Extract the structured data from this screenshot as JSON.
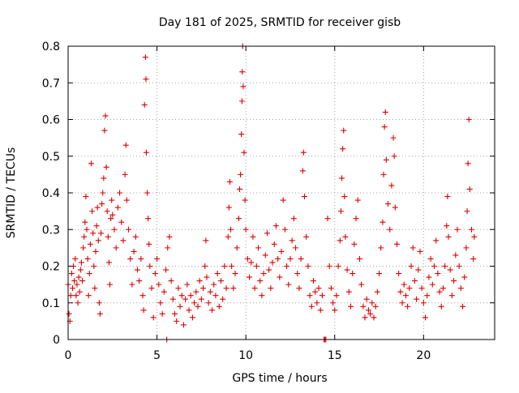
{
  "chart_data": {
    "type": "scatter",
    "title": "Day 181 of 2025, SRMTID for receiver gisb",
    "xlabel": "GPS time / hours",
    "ylabel": "SRMTID / TECUs",
    "xlim": [
      0,
      24
    ],
    "ylim": [
      0,
      0.8
    ],
    "xticks": [
      0,
      5,
      10,
      15,
      20
    ],
    "xtick_labels": [
      "0",
      "5",
      "10",
      "15",
      "20"
    ],
    "yticks": [
      0,
      0.1,
      0.2,
      0.3,
      0.4,
      0.5,
      0.6,
      0.7,
      0.8
    ],
    "ytick_labels": [
      "0",
      "0.1",
      "0.2",
      "0.3",
      "0.4",
      "0.5",
      "0.6",
      "0.7",
      "0.8"
    ],
    "grid": true,
    "marker": "plus",
    "color": "#e00000",
    "series": [
      {
        "name": "SRMTID",
        "points": [
          [
            0.0,
            0.15
          ],
          [
            0.05,
            0.07
          ],
          [
            0.1,
            0.05
          ],
          [
            0.15,
            0.12
          ],
          [
            0.2,
            0.18
          ],
          [
            0.25,
            0.14
          ],
          [
            0.3,
            0.2
          ],
          [
            0.35,
            0.16
          ],
          [
            0.4,
            0.22
          ],
          [
            0.45,
            0.12
          ],
          [
            0.5,
            0.15
          ],
          [
            0.55,
            0.1
          ],
          [
            0.6,
            0.17
          ],
          [
            0.65,
            0.13
          ],
          [
            0.7,
            0.19
          ],
          [
            0.75,
            0.21
          ],
          [
            0.8,
            0.16
          ],
          [
            0.85,
            0.25
          ],
          [
            0.9,
            0.28
          ],
          [
            0.95,
            0.32
          ],
          [
            1.0,
            0.39
          ],
          [
            1.05,
            0.3
          ],
          [
            1.1,
            0.22
          ],
          [
            1.15,
            0.12
          ],
          [
            1.2,
            0.18
          ],
          [
            1.25,
            0.26
          ],
          [
            1.3,
            0.48
          ],
          [
            1.35,
            0.35
          ],
          [
            1.4,
            0.29
          ],
          [
            1.45,
            0.2
          ],
          [
            1.5,
            0.14
          ],
          [
            1.55,
            0.24
          ],
          [
            1.6,
            0.31
          ],
          [
            1.65,
            0.36
          ],
          [
            1.7,
            0.27
          ],
          [
            1.75,
            0.1
          ],
          [
            1.8,
            0.07
          ],
          [
            1.85,
            0.29
          ],
          [
            1.9,
            0.37
          ],
          [
            1.95,
            0.4
          ],
          [
            2.0,
            0.44
          ],
          [
            2.05,
            0.57
          ],
          [
            2.1,
            0.61
          ],
          [
            2.15,
            0.47
          ],
          [
            2.2,
            0.35
          ],
          [
            2.25,
            0.28
          ],
          [
            2.3,
            0.21
          ],
          [
            2.35,
            0.15
          ],
          [
            2.4,
            0.33
          ],
          [
            2.45,
            0.38
          ],
          [
            2.5,
            0.34
          ],
          [
            2.6,
            0.3
          ],
          [
            2.7,
            0.25
          ],
          [
            2.8,
            0.36
          ],
          [
            2.9,
            0.4
          ],
          [
            3.0,
            0.32
          ],
          [
            3.1,
            0.27
          ],
          [
            3.2,
            0.45
          ],
          [
            3.25,
            0.53
          ],
          [
            3.3,
            0.38
          ],
          [
            3.4,
            0.3
          ],
          [
            3.5,
            0.22
          ],
          [
            3.6,
            0.15
          ],
          [
            3.7,
            0.24
          ],
          [
            3.8,
            0.28
          ],
          [
            3.9,
            0.19
          ],
          [
            4.0,
            0.16
          ],
          [
            4.1,
            0.22
          ],
          [
            4.2,
            0.12
          ],
          [
            4.25,
            0.08
          ],
          [
            4.3,
            0.64
          ],
          [
            4.35,
            0.77
          ],
          [
            4.38,
            0.71
          ],
          [
            4.4,
            0.51
          ],
          [
            4.45,
            0.4
          ],
          [
            4.5,
            0.33
          ],
          [
            4.55,
            0.26
          ],
          [
            4.6,
            0.2
          ],
          [
            4.7,
            0.14
          ],
          [
            4.8,
            0.06
          ],
          [
            4.9,
            0.18
          ],
          [
            5.0,
            0.22
          ],
          [
            5.1,
            0.15
          ],
          [
            5.2,
            0.1
          ],
          [
            5.3,
            0.07
          ],
          [
            5.4,
            0.13
          ],
          [
            5.5,
            0.19
          ],
          [
            5.55,
            0.0
          ],
          [
            5.6,
            0.25
          ],
          [
            5.7,
            0.28
          ],
          [
            5.8,
            0.16
          ],
          [
            5.9,
            0.11
          ],
          [
            6.0,
            0.07
          ],
          [
            6.1,
            0.05
          ],
          [
            6.2,
            0.14
          ],
          [
            6.3,
            0.09
          ],
          [
            6.4,
            0.12
          ],
          [
            6.5,
            0.04
          ],
          [
            6.6,
            0.11
          ],
          [
            6.7,
            0.15
          ],
          [
            6.8,
            0.08
          ],
          [
            6.9,
            0.12
          ],
          [
            7.0,
            0.06
          ],
          [
            7.1,
            0.1
          ],
          [
            7.2,
            0.13
          ],
          [
            7.3,
            0.09
          ],
          [
            7.4,
            0.16
          ],
          [
            7.5,
            0.11
          ],
          [
            7.6,
            0.14
          ],
          [
            7.7,
            0.2
          ],
          [
            7.75,
            0.27
          ],
          [
            7.8,
            0.17
          ],
          [
            7.9,
            0.1
          ],
          [
            8.0,
            0.13
          ],
          [
            8.1,
            0.08
          ],
          [
            8.2,
            0.15
          ],
          [
            8.3,
            0.12
          ],
          [
            8.4,
            0.18
          ],
          [
            8.5,
            0.09
          ],
          [
            8.6,
            0.16
          ],
          [
            8.7,
            0.11
          ],
          [
            8.8,
            0.2
          ],
          [
            8.9,
            0.14
          ],
          [
            9.0,
            0.28
          ],
          [
            9.05,
            0.36
          ],
          [
            9.1,
            0.43
          ],
          [
            9.15,
            0.3
          ],
          [
            9.2,
            0.2
          ],
          [
            9.3,
            0.14
          ],
          [
            9.4,
            0.18
          ],
          [
            9.5,
            0.25
          ],
          [
            9.6,
            0.33
          ],
          [
            9.65,
            0.41
          ],
          [
            9.7,
            0.45
          ],
          [
            9.75,
            0.56
          ],
          [
            9.78,
            0.65
          ],
          [
            9.8,
            0.73
          ],
          [
            9.82,
            0.8
          ],
          [
            9.85,
            0.69
          ],
          [
            9.9,
            0.51
          ],
          [
            9.95,
            0.38
          ],
          [
            10.0,
            0.3
          ],
          [
            10.1,
            0.22
          ],
          [
            10.2,
            0.17
          ],
          [
            10.3,
            0.21
          ],
          [
            10.4,
            0.28
          ],
          [
            10.5,
            0.14
          ],
          [
            10.6,
            0.2
          ],
          [
            10.7,
            0.25
          ],
          [
            10.8,
            0.16
          ],
          [
            10.9,
            0.12
          ],
          [
            11.0,
            0.18
          ],
          [
            11.1,
            0.23
          ],
          [
            11.2,
            0.29
          ],
          [
            11.3,
            0.19
          ],
          [
            11.4,
            0.14
          ],
          [
            11.5,
            0.21
          ],
          [
            11.6,
            0.26
          ],
          [
            11.7,
            0.31
          ],
          [
            11.8,
            0.22
          ],
          [
            11.9,
            0.17
          ],
          [
            12.0,
            0.24
          ],
          [
            12.1,
            0.38
          ],
          [
            12.2,
            0.3
          ],
          [
            12.3,
            0.2
          ],
          [
            12.4,
            0.15
          ],
          [
            12.5,
            0.22
          ],
          [
            12.6,
            0.27
          ],
          [
            12.7,
            0.33
          ],
          [
            12.8,
            0.25
          ],
          [
            12.9,
            0.18
          ],
          [
            13.0,
            0.14
          ],
          [
            13.1,
            0.22
          ],
          [
            13.2,
            0.46
          ],
          [
            13.25,
            0.51
          ],
          [
            13.3,
            0.39
          ],
          [
            13.4,
            0.28
          ],
          [
            13.5,
            0.2
          ],
          [
            13.6,
            0.12
          ],
          [
            13.7,
            0.09
          ],
          [
            13.8,
            0.16
          ],
          [
            13.9,
            0.13
          ],
          [
            14.0,
            0.1
          ],
          [
            14.1,
            0.14
          ],
          [
            14.2,
            0.08
          ],
          [
            14.3,
            0.12
          ],
          [
            14.4,
            0.0
          ],
          [
            14.45,
            0.0
          ],
          [
            14.5,
            0.0
          ],
          [
            14.6,
            0.33
          ],
          [
            14.7,
            0.2
          ],
          [
            14.8,
            0.14
          ],
          [
            14.9,
            0.1
          ],
          [
            15.0,
            0.08
          ],
          [
            15.1,
            0.12
          ],
          [
            15.2,
            0.2
          ],
          [
            15.3,
            0.27
          ],
          [
            15.35,
            0.35
          ],
          [
            15.4,
            0.44
          ],
          [
            15.45,
            0.52
          ],
          [
            15.5,
            0.57
          ],
          [
            15.55,
            0.39
          ],
          [
            15.6,
            0.28
          ],
          [
            15.7,
            0.19
          ],
          [
            15.8,
            0.13
          ],
          [
            15.9,
            0.09
          ],
          [
            16.0,
            0.18
          ],
          [
            16.1,
            0.26
          ],
          [
            16.2,
            0.33
          ],
          [
            16.3,
            0.38
          ],
          [
            16.4,
            0.22
          ],
          [
            16.5,
            0.15
          ],
          [
            16.6,
            0.09
          ],
          [
            16.7,
            0.06
          ],
          [
            16.8,
            0.11
          ],
          [
            16.9,
            0.08
          ],
          [
            17.0,
            0.07
          ],
          [
            17.1,
            0.1
          ],
          [
            17.2,
            0.06
          ],
          [
            17.3,
            0.09
          ],
          [
            17.4,
            0.13
          ],
          [
            17.5,
            0.18
          ],
          [
            17.6,
            0.25
          ],
          [
            17.7,
            0.32
          ],
          [
            17.75,
            0.45
          ],
          [
            17.8,
            0.58
          ],
          [
            17.85,
            0.62
          ],
          [
            17.9,
            0.49
          ],
          [
            18.0,
            0.37
          ],
          [
            18.1,
            0.3
          ],
          [
            18.2,
            0.42
          ],
          [
            18.3,
            0.55
          ],
          [
            18.35,
            0.5
          ],
          [
            18.4,
            0.36
          ],
          [
            18.5,
            0.26
          ],
          [
            18.6,
            0.18
          ],
          [
            18.7,
            0.13
          ],
          [
            18.8,
            0.1
          ],
          [
            18.9,
            0.15
          ],
          [
            19.0,
            0.12
          ],
          [
            19.1,
            0.09
          ],
          [
            19.2,
            0.14
          ],
          [
            19.3,
            0.2
          ],
          [
            19.4,
            0.25
          ],
          [
            19.5,
            0.16
          ],
          [
            19.6,
            0.11
          ],
          [
            19.7,
            0.19
          ],
          [
            19.8,
            0.24
          ],
          [
            19.9,
            0.14
          ],
          [
            20.0,
            0.1
          ],
          [
            20.1,
            0.06
          ],
          [
            20.2,
            0.12
          ],
          [
            20.3,
            0.17
          ],
          [
            20.4,
            0.22
          ],
          [
            20.5,
            0.15
          ],
          [
            20.6,
            0.2
          ],
          [
            20.7,
            0.27
          ],
          [
            20.8,
            0.18
          ],
          [
            20.9,
            0.13
          ],
          [
            21.0,
            0.09
          ],
          [
            21.1,
            0.14
          ],
          [
            21.2,
            0.2
          ],
          [
            21.3,
            0.31
          ],
          [
            21.35,
            0.39
          ],
          [
            21.4,
            0.28
          ],
          [
            21.5,
            0.19
          ],
          [
            21.6,
            0.12
          ],
          [
            21.7,
            0.16
          ],
          [
            21.8,
            0.23
          ],
          [
            21.9,
            0.3
          ],
          [
            22.0,
            0.2
          ],
          [
            22.1,
            0.14
          ],
          [
            22.2,
            0.09
          ],
          [
            22.3,
            0.17
          ],
          [
            22.4,
            0.25
          ],
          [
            22.45,
            0.35
          ],
          [
            22.5,
            0.48
          ],
          [
            22.55,
            0.6
          ],
          [
            22.6,
            0.41
          ],
          [
            22.7,
            0.3
          ],
          [
            22.8,
            0.22
          ],
          [
            22.85,
            0.28
          ]
        ]
      }
    ]
  }
}
